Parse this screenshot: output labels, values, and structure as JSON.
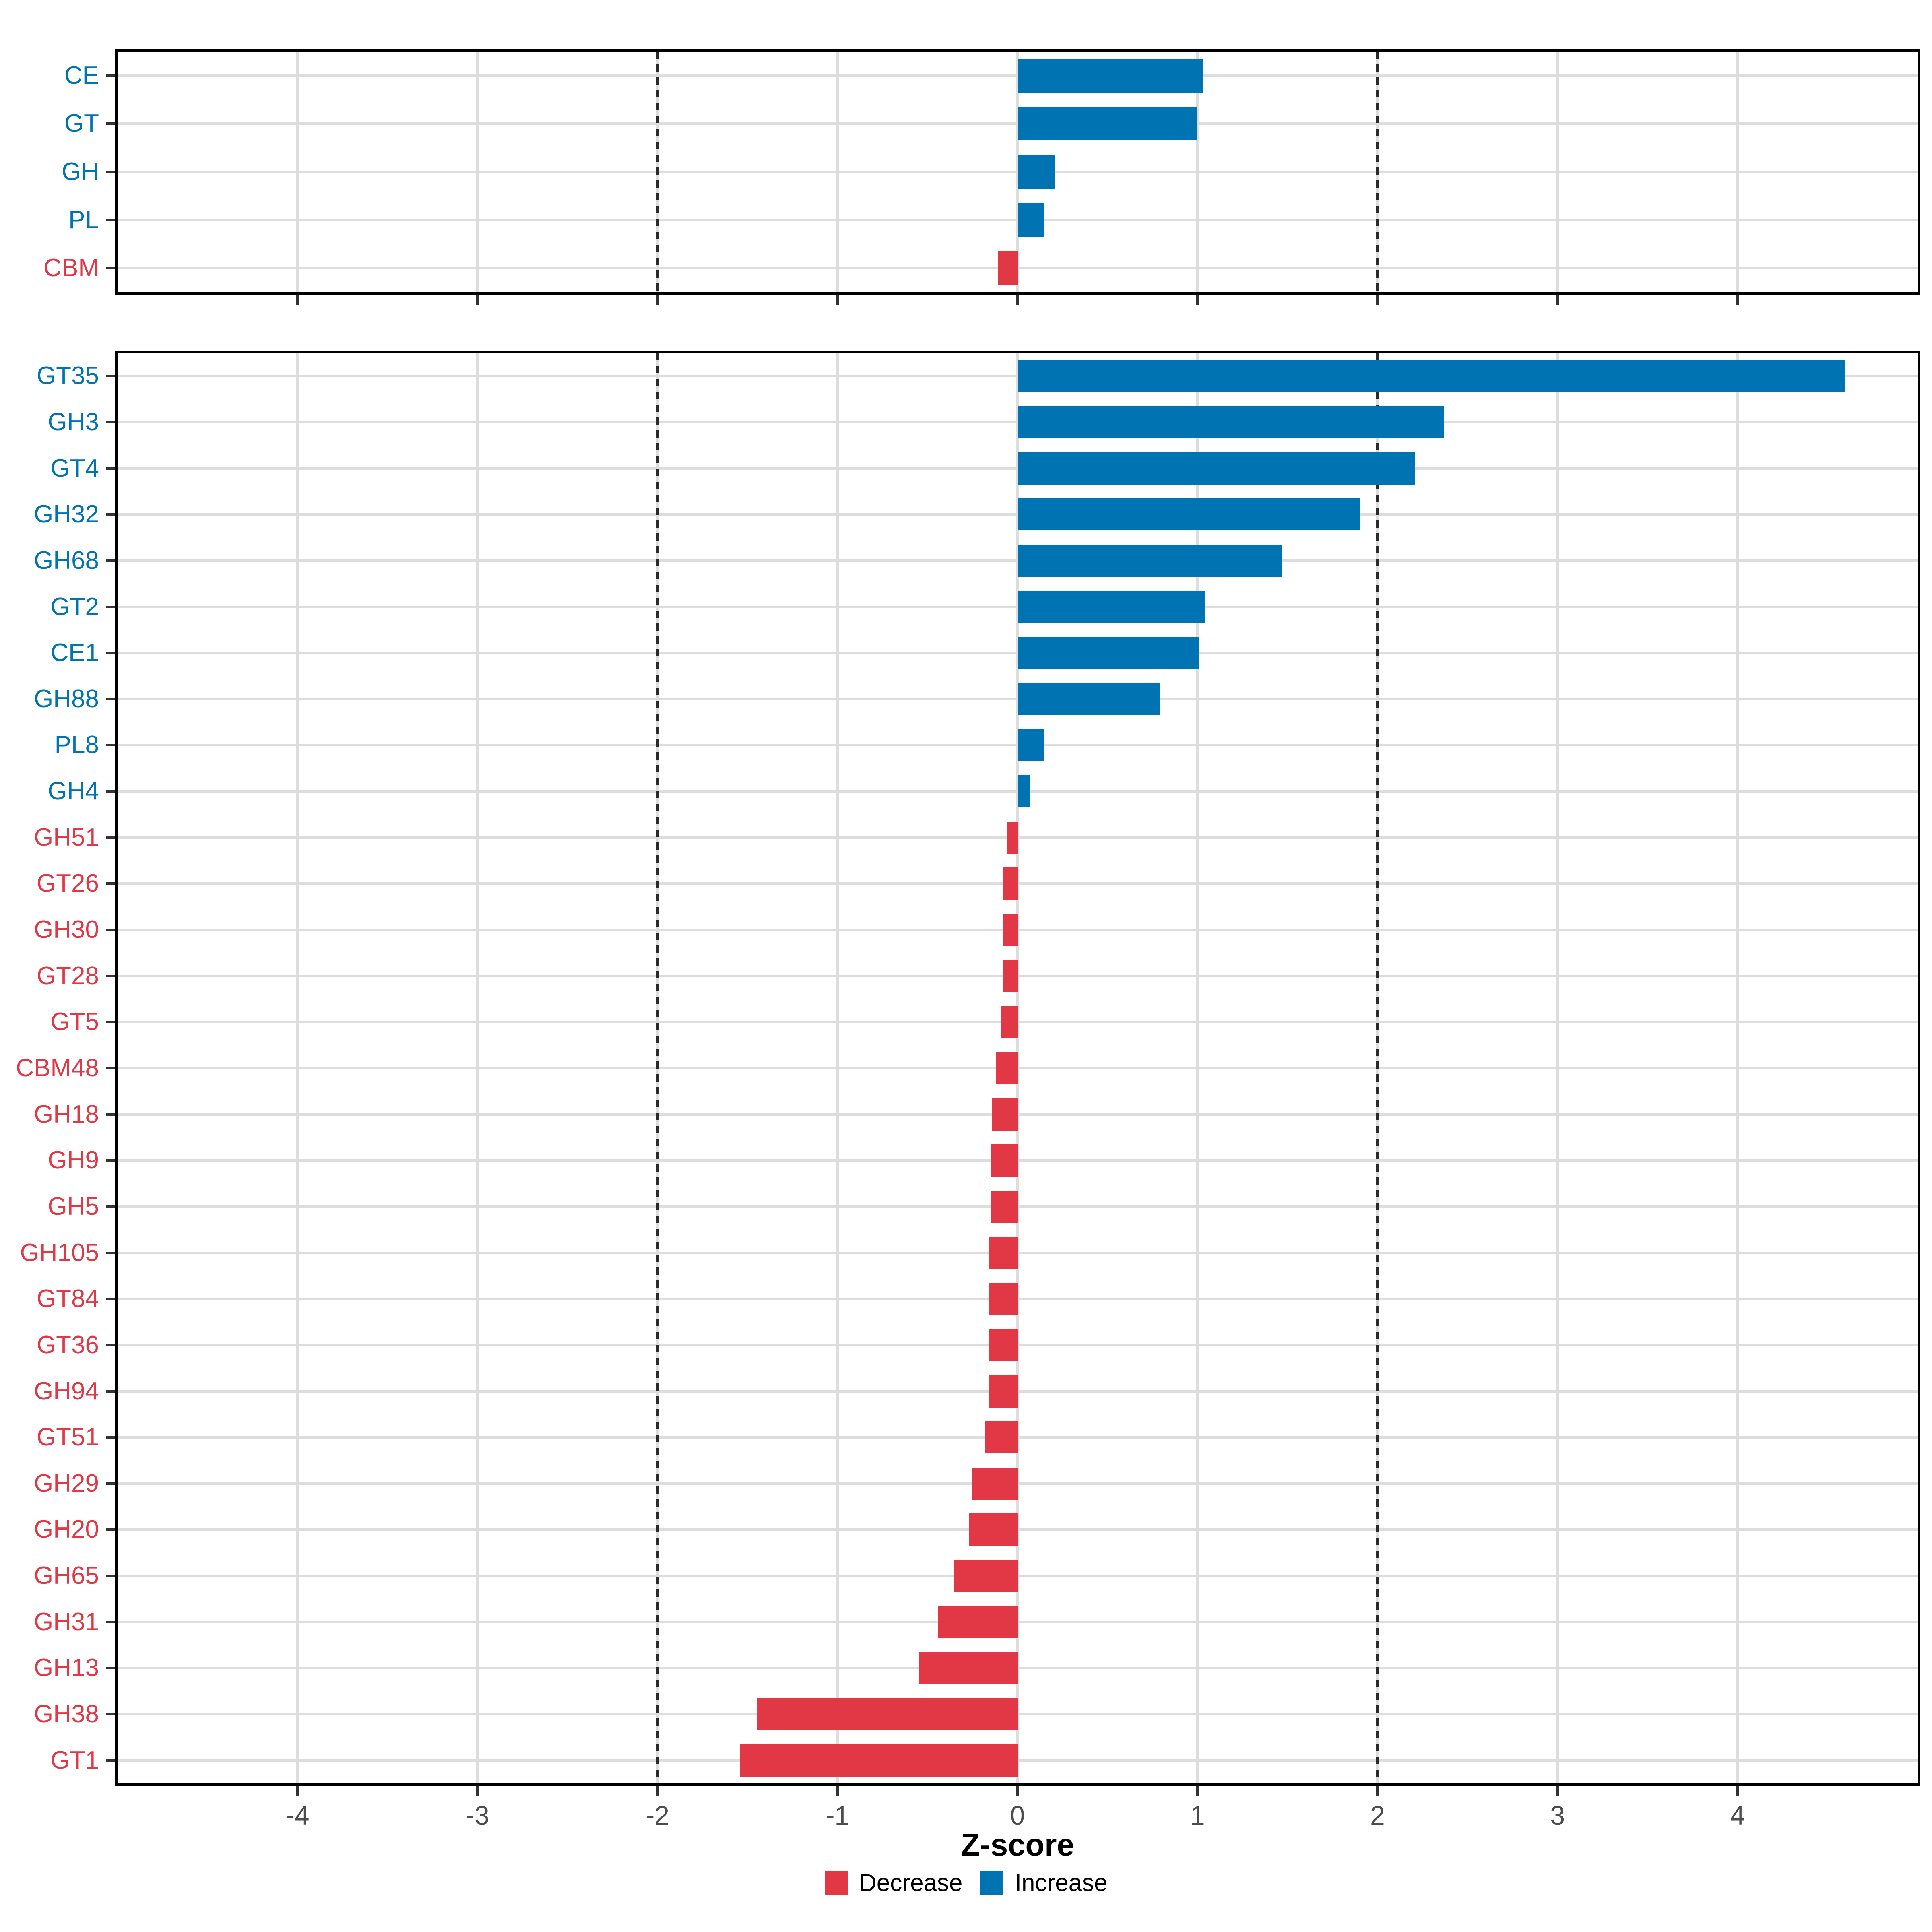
{
  "colors": {
    "increase": "#0073B2",
    "decrease": "#E23845",
    "gridline": "#DDDDDD",
    "dashed_line": "#2B2B2B",
    "axis_text": "#4D4D4D",
    "panel_border": "#000000"
  },
  "axis": {
    "xlabel": "Z-score",
    "xlim": [
      -5,
      5
    ],
    "x_tick_values": [
      -4,
      -3,
      -2,
      -1,
      0,
      1,
      2,
      3,
      4
    ],
    "x_tick_labels": [
      "-4",
      "-3",
      "-2",
      "-1",
      "0",
      "1",
      "2",
      "3",
      "4"
    ],
    "reference_lines": [
      -2,
      2
    ]
  },
  "legend": {
    "items": [
      {
        "label": "Decrease",
        "color_key": "decrease"
      },
      {
        "label": "Increase",
        "color_key": "increase"
      }
    ]
  },
  "chart_data": [
    {
      "type": "bar",
      "orientation": "horizontal",
      "panel": "cazyme_classes",
      "grid": "on",
      "legend_position": "bottom",
      "xlim": [
        -5,
        5
      ],
      "categories": [
        "CE",
        "GT",
        "GH",
        "PL",
        "CBM"
      ],
      "values": [
        1.03,
        1.0,
        0.21,
        0.15,
        -0.11
      ]
    },
    {
      "type": "bar",
      "orientation": "horizontal",
      "panel": "cazyme_families",
      "grid": "on",
      "legend_position": "bottom",
      "xlim": [
        -5,
        5
      ],
      "categories": [
        "GT35",
        "GH3",
        "GT4",
        "GH32",
        "GH68",
        "GT2",
        "CE1",
        "GH88",
        "PL8",
        "GH4",
        "GH51",
        "GT26",
        "GH30",
        "GT28",
        "GT5",
        "CBM48",
        "GH18",
        "GH9",
        "GH5",
        "GH105",
        "GT84",
        "GT36",
        "GH94",
        "GT51",
        "GH29",
        "GH20",
        "GH65",
        "GH31",
        "GH13",
        "GH38",
        "GT1"
      ],
      "values": [
        4.6,
        2.37,
        2.21,
        1.9,
        1.47,
        1.04,
        1.01,
        0.79,
        0.15,
        0.07,
        -0.06,
        -0.08,
        -0.08,
        -0.08,
        -0.09,
        -0.12,
        -0.14,
        -0.15,
        -0.15,
        -0.16,
        -0.16,
        -0.16,
        -0.16,
        -0.18,
        -0.25,
        -0.27,
        -0.35,
        -0.44,
        -0.55,
        -1.45,
        -1.54
      ]
    }
  ]
}
